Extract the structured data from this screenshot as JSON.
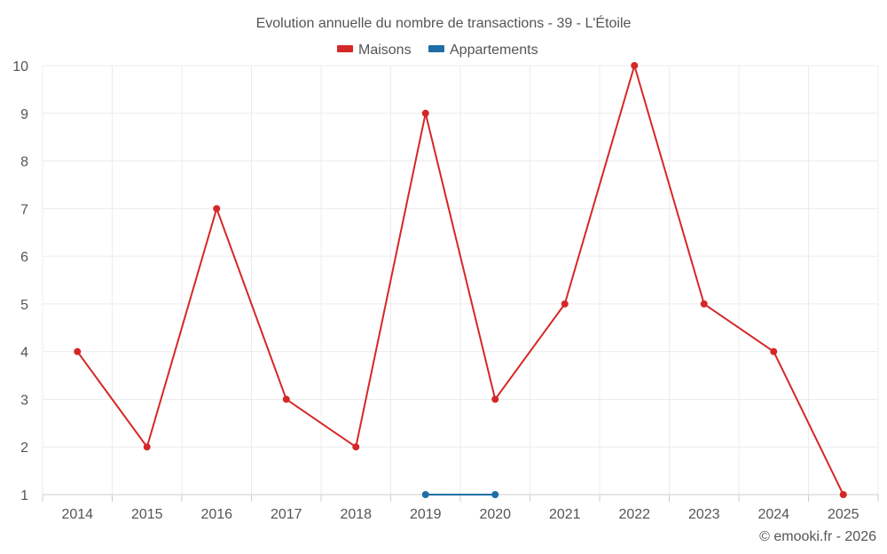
{
  "chart_data": {
    "type": "line",
    "title": "Evolution annuelle du nombre de transactions - 39 - L'Étoile",
    "categories": [
      "2014",
      "2015",
      "2016",
      "2017",
      "2018",
      "2019",
      "2020",
      "2021",
      "2022",
      "2023",
      "2024",
      "2025"
    ],
    "y_ticks": [
      "1",
      "2",
      "3",
      "4",
      "5",
      "6",
      "7",
      "8",
      "9",
      "10"
    ],
    "ylim": [
      1,
      10
    ],
    "xlabel": "",
    "ylabel": "",
    "grid": true,
    "legend_position": "top-center",
    "series": [
      {
        "name": "Maisons",
        "color": "#d62728",
        "values": [
          4,
          2,
          7,
          3,
          2,
          9,
          3,
          5,
          10,
          5,
          4,
          1
        ]
      },
      {
        "name": "Appartements",
        "color": "#1f6fa5",
        "values": [
          null,
          null,
          null,
          null,
          null,
          1,
          1,
          null,
          null,
          null,
          null,
          null
        ]
      }
    ]
  },
  "credit": "© emooki.fr - 2026"
}
